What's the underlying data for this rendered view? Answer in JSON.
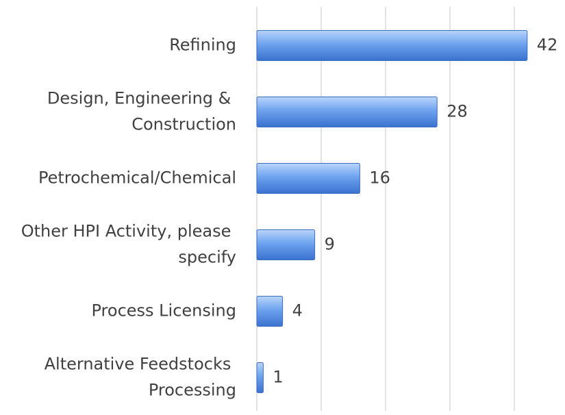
{
  "chart_data": {
    "type": "barh",
    "categories": [
      "Refining",
      "Design, Engineering & Construction",
      "Petrochemical/Chemical",
      "Other HPI Activity, please specify",
      "Process Licensing",
      "Alternative Feedstocks Processing"
    ],
    "values": [
      42,
      28,
      16,
      9,
      4,
      1
    ],
    "color": "#5b93e6",
    "xlim": [
      0,
      45
    ],
    "xticks": [
      0,
      10,
      20,
      30,
      40
    ],
    "grid": true
  }
}
